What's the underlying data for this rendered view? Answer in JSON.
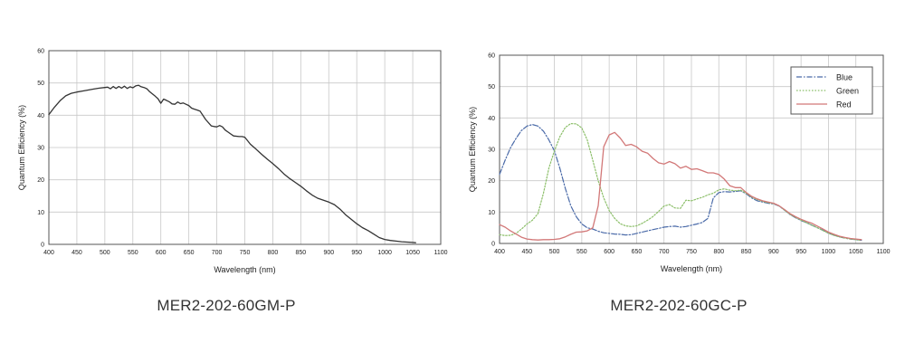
{
  "charts": [
    {
      "caption": "MER2-202-60GM-P",
      "chart_data": {
        "type": "line",
        "title": "",
        "xlabel": "Wavelength (nm)",
        "ylabel": "Quantum Efficiency (%)",
        "xlim": [
          400,
          1100
        ],
        "ylim": [
          0,
          60
        ],
        "xticks": [
          "400",
          "450",
          "500",
          "550",
          "600",
          "650",
          "700",
          "750",
          "800",
          "850",
          "900",
          "950",
          "1000",
          "1050",
          "1100"
        ],
        "yticks": [
          "0",
          "10",
          "20",
          "30",
          "40",
          "50",
          "60"
        ],
        "grid": true,
        "legend": null,
        "series": [
          {
            "color": "#333333",
            "style": "solid",
            "x": [
              400,
              410,
              420,
              430,
              440,
              450,
              460,
              470,
              480,
              490,
              500,
              505,
              510,
              515,
              520,
              525,
              530,
              535,
              540,
              545,
              550,
              555,
              560,
              565,
              570,
              575,
              580,
              585,
              590,
              595,
              600,
              605,
              610,
              615,
              620,
              625,
              630,
              635,
              640,
              645,
              650,
              655,
              660,
              665,
              670,
              680,
              690,
              695,
              700,
              705,
              710,
              715,
              720,
              730,
              740,
              745,
              750,
              760,
              770,
              780,
              790,
              800,
              810,
              820,
              830,
              840,
              850,
              860,
              870,
              880,
              890,
              900,
              910,
              920,
              930,
              940,
              950,
              960,
              970,
              980,
              990,
              1000,
              1010,
              1020,
              1030,
              1040,
              1050,
              1055
            ],
            "y": [
              40.2,
              42.5,
              44.5,
              46.0,
              46.8,
              47.2,
              47.5,
              47.8,
              48.1,
              48.4,
              48.6,
              48.7,
              48.2,
              48.9,
              48.3,
              48.9,
              48.4,
              49.0,
              48.3,
              48.8,
              48.5,
              49.1,
              49.3,
              48.8,
              48.6,
              48.2,
              47.3,
              46.6,
              45.9,
              45.1,
              43.7,
              45.0,
              44.6,
              44.2,
              43.5,
              43.4,
              44.1,
              43.6,
              43.8,
              43.4,
              43.0,
              42.2,
              41.9,
              41.6,
              41.3,
              38.7,
              36.7,
              36.5,
              36.4,
              36.8,
              36.4,
              35.4,
              34.8,
              33.6,
              33.4,
              33.4,
              33.2,
              31.0,
              29.5,
              27.9,
              26.4,
              25.0,
              23.5,
              21.8,
              20.4,
              19.2,
              18.0,
              16.6,
              15.3,
              14.3,
              13.7,
              13.1,
              12.3,
              10.9,
              9.2,
              7.8,
              6.4,
              5.2,
              4.3,
              3.2,
              2.1,
              1.5,
              1.2,
              1.0,
              0.8,
              0.7,
              0.6,
              0.5
            ]
          }
        ]
      }
    },
    {
      "caption": "MER2-202-60GC-P",
      "chart_data": {
        "type": "line",
        "title": "",
        "xlabel": "Wavelength (nm)",
        "ylabel": "Quantum Efficiency (%)",
        "xlim": [
          400,
          1100
        ],
        "ylim": [
          0,
          60
        ],
        "xticks": [
          "400",
          "450",
          "500",
          "550",
          "600",
          "650",
          "700",
          "750",
          "800",
          "850",
          "900",
          "950",
          "1000",
          "1050",
          "1100"
        ],
        "yticks": [
          "0",
          "10",
          "20",
          "30",
          "40",
          "50",
          "60"
        ],
        "grid": true,
        "legend": "top-right",
        "series": [
          {
            "name": "Blue",
            "color": "#4a6aa8",
            "style": "dashdot",
            "x": [
              400,
              410,
              420,
              430,
              440,
              450,
              460,
              470,
              480,
              490,
              500,
              510,
              520,
              530,
              540,
              550,
              560,
              570,
              580,
              590,
              600,
              610,
              620,
              630,
              640,
              650,
              660,
              670,
              680,
              690,
              700,
              710,
              720,
              730,
              740,
              750,
              760,
              770,
              780,
              790,
              800,
              810,
              820,
              830,
              840,
              850,
              860,
              870,
              880,
              890,
              900,
              910,
              920,
              930,
              940,
              950,
              960,
              970,
              980,
              990,
              1000,
              1010,
              1020,
              1030,
              1040,
              1050,
              1060
            ],
            "y": [
              22.0,
              26.5,
              30.5,
              33.5,
              36.0,
              37.4,
              37.9,
              37.4,
              35.8,
              33.0,
              29.5,
              24.0,
              17.5,
              12.0,
              8.5,
              6.2,
              5.0,
              4.6,
              3.9,
              3.4,
              3.2,
              3.0,
              2.9,
              2.7,
              2.8,
              3.2,
              3.6,
              4.0,
              4.4,
              4.8,
              5.2,
              5.4,
              5.5,
              5.2,
              5.4,
              5.8,
              6.2,
              6.7,
              8.0,
              14.5,
              16.2,
              16.5,
              16.4,
              16.6,
              16.8,
              15.8,
              14.5,
              13.6,
              13.2,
              12.8,
              12.6,
              11.9,
              10.6,
              9.2,
              8.2,
              7.3,
              6.6,
              5.8,
              5.0,
              4.2,
              3.3,
              2.6,
              2.1,
              1.7,
              1.4,
              1.2,
              1.0
            ]
          },
          {
            "name": "Green",
            "color": "#8cbf6a",
            "style": "dotted",
            "x": [
              400,
              410,
              420,
              430,
              440,
              450,
              460,
              470,
              480,
              490,
              500,
              510,
              520,
              530,
              540,
              550,
              560,
              570,
              580,
              590,
              600,
              610,
              620,
              630,
              640,
              650,
              660,
              670,
              680,
              690,
              700,
              710,
              720,
              730,
              740,
              750,
              760,
              770,
              780,
              790,
              800,
              810,
              820,
              830,
              840,
              850,
              860,
              870,
              880,
              890,
              900,
              910,
              920,
              930,
              940,
              950,
              960,
              970,
              980,
              990,
              1000,
              1010,
              1020,
              1030,
              1040,
              1050,
              1060
            ],
            "y": [
              2.8,
              2.5,
              2.6,
              3.2,
              4.6,
              6.2,
              7.4,
              9.5,
              16.0,
              24.0,
              29.5,
              34.0,
              37.0,
              38.2,
              38.1,
              36.8,
              33.0,
              26.5,
              20.0,
              14.5,
              10.5,
              8.0,
              6.3,
              5.6,
              5.4,
              5.6,
              6.4,
              7.4,
              8.6,
              10.2,
              11.9,
              12.4,
              11.3,
              11.2,
              13.8,
              13.6,
              14.2,
              14.7,
              15.5,
              16.0,
              17.1,
              17.4,
              17.0,
              16.8,
              17.0,
              16.0,
              14.8,
              14.0,
              13.4,
              13.0,
              12.7,
              12.0,
              10.6,
              9.3,
              8.3,
              7.4,
              6.6,
              5.8,
              5.0,
              4.1,
              3.3,
              2.6,
              2.1,
              1.7,
              1.4,
              1.2,
              1.0
            ]
          },
          {
            "name": "Red",
            "color": "#d27878",
            "style": "solid",
            "x": [
              400,
              410,
              420,
              430,
              440,
              450,
              460,
              470,
              480,
              490,
              500,
              510,
              520,
              530,
              540,
              550,
              560,
              570,
              580,
              590,
              600,
              610,
              620,
              630,
              640,
              650,
              660,
              670,
              680,
              690,
              700,
              710,
              720,
              730,
              740,
              750,
              760,
              770,
              780,
              790,
              800,
              810,
              820,
              830,
              840,
              850,
              860,
              870,
              880,
              890,
              900,
              910,
              920,
              930,
              940,
              950,
              960,
              970,
              980,
              990,
              1000,
              1010,
              1020,
              1030,
              1040,
              1050,
              1060
            ],
            "y": [
              6.0,
              5.2,
              4.0,
              3.0,
              2.0,
              1.4,
              1.2,
              1.1,
              1.2,
              1.2,
              1.3,
              1.5,
              2.1,
              2.9,
              3.6,
              3.7,
              4.0,
              5.0,
              12.0,
              30.8,
              34.6,
              35.4,
              33.6,
              31.2,
              31.6,
              30.8,
              29.4,
              28.8,
              27.1,
              25.7,
              25.3,
              26.1,
              25.4,
              24.0,
              24.6,
              23.6,
              23.8,
              23.2,
              22.5,
              22.5,
              22.0,
              20.5,
              18.4,
              17.8,
              17.8,
              16.2,
              15.0,
              14.2,
              13.6,
              13.2,
              12.8,
              12.0,
              10.8,
              9.5,
              8.5,
              7.7,
              7.0,
              6.4,
              5.5,
              4.6,
              3.6,
              2.9,
              2.3,
              1.9,
              1.6,
              1.4,
              1.2
            ]
          }
        ]
      }
    }
  ]
}
